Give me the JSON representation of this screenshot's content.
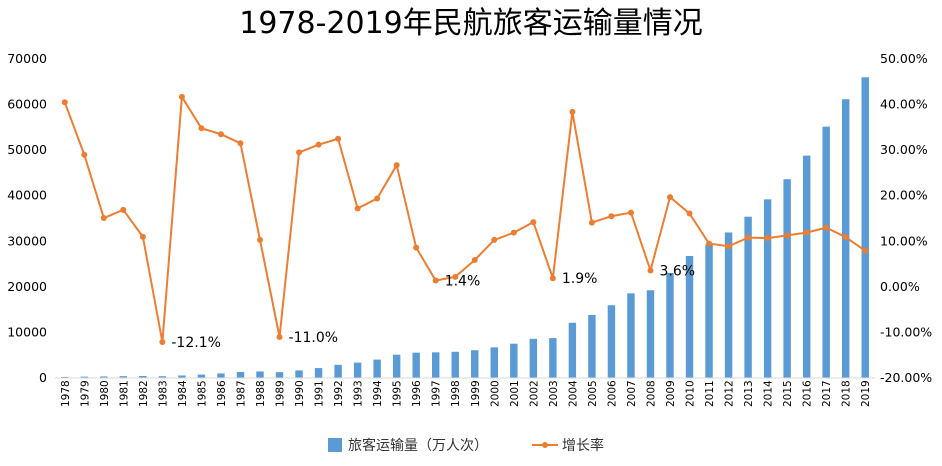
{
  "chart_data": {
    "type": "bar+line",
    "title": "1978-2019年民航旅客运输量情况",
    "categories": [
      "1978",
      "1979",
      "1980",
      "1981",
      "1982",
      "1983",
      "1984",
      "1985",
      "1986",
      "1987",
      "1988",
      "1989",
      "1990",
      "1991",
      "1992",
      "1993",
      "1994",
      "1995",
      "1996",
      "1997",
      "1998",
      "1999",
      "2000",
      "2001",
      "2002",
      "2003",
      "2004",
      "2005",
      "2006",
      "2007",
      "2008",
      "2009",
      "2010",
      "2011",
      "2012",
      "2013",
      "2014",
      "2015",
      "2016",
      "2017",
      "2018",
      "2019"
    ],
    "series": [
      {
        "name": "旅客运输量（万人次）",
        "type": "bar",
        "axis": "left",
        "color": "#5B9BD5",
        "values": [
          231,
          298,
          343,
          401,
          445,
          391,
          554,
          747,
          997,
          1310,
          1442,
          1283,
          1660,
          2178,
          2886,
          3383,
          4038,
          5117,
          5555,
          5630,
          5755,
          6094,
          6722,
          7524,
          8594,
          8759,
          12123,
          13827,
          15968,
          18576,
          19251,
          23052,
          26769,
          29317,
          31936,
          35397,
          39195,
          43618,
          48796,
          55156,
          61174,
          65993
        ]
      },
      {
        "name": "增长率",
        "type": "line",
        "axis": "right",
        "color": "#ED7D31",
        "values": [
          40.5,
          29.0,
          15.1,
          16.9,
          11.0,
          -12.1,
          41.7,
          34.8,
          33.5,
          31.5,
          10.3,
          -11.0,
          29.5,
          31.2,
          32.5,
          17.2,
          19.4,
          26.7,
          8.6,
          1.4,
          2.2,
          5.9,
          10.3,
          11.9,
          14.2,
          1.9,
          38.4,
          14.1,
          15.5,
          16.3,
          3.6,
          19.7,
          16.1,
          9.5,
          8.9,
          10.8,
          10.7,
          11.3,
          11.9,
          13.0,
          10.9,
          7.9
        ]
      }
    ],
    "y_left": {
      "min": 0,
      "max": 70000,
      "ticks": [
        "0",
        "10000",
        "20000",
        "30000",
        "40000",
        "50000",
        "60000",
        "70000"
      ]
    },
    "y_right": {
      "min": -20,
      "max": 50,
      "ticks": [
        "-20.00%",
        "-10.00%",
        "0.00%",
        "10.00%",
        "20.00%",
        "30.00%",
        "40.00%",
        "50.00%"
      ]
    },
    "annotations": [
      {
        "category": "1983",
        "text": "-12.1%"
      },
      {
        "category": "1989",
        "text": "-11.0%"
      },
      {
        "category": "1997",
        "text": "1.4%"
      },
      {
        "category": "2003",
        "text": "1.9%"
      },
      {
        "category": "2008",
        "text": "3.6%"
      }
    ],
    "grid": false,
    "legend": "bottom",
    "legend_entries": [
      "旅客运输量（万人次）",
      "增长率"
    ]
  }
}
